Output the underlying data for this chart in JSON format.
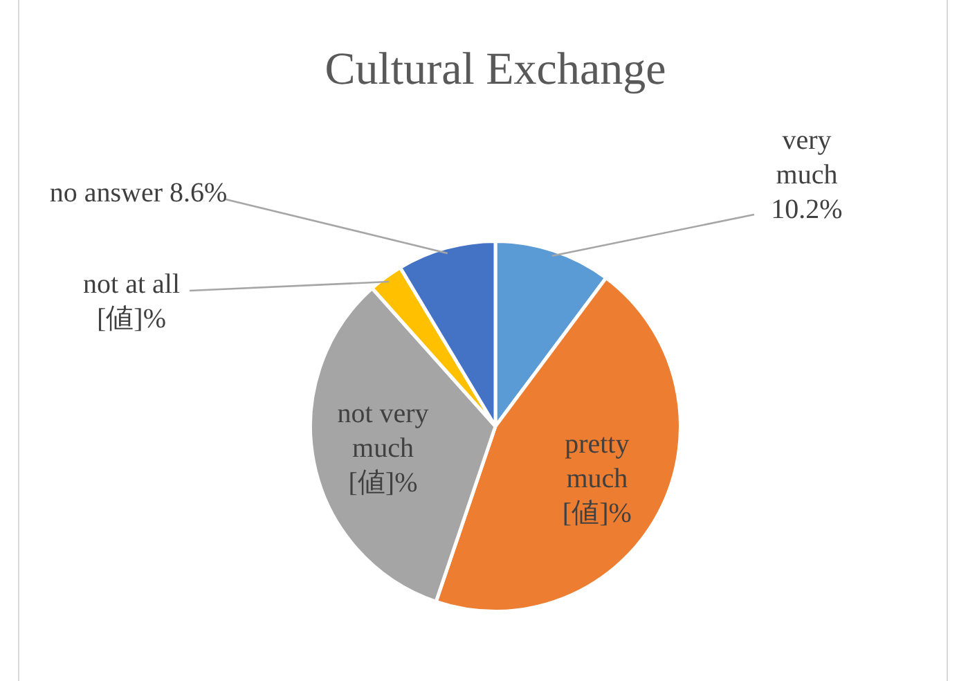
{
  "chart_data": {
    "type": "pie",
    "title": "Cultural Exchange",
    "categories": [
      "very much",
      "pretty much",
      "not very much",
      "not at all",
      "no answer"
    ],
    "values": [
      10.2,
      45.0,
      33.2,
      3.0,
      8.6
    ],
    "value_labels": [
      "10.2%",
      "[値]%",
      "[値]%",
      "[値]%",
      "8.6%"
    ],
    "colors": [
      "#5b9bd5",
      "#ed7d31",
      "#a5a5a5",
      "#ffc000",
      "#4472c4"
    ],
    "legend": false
  }
}
